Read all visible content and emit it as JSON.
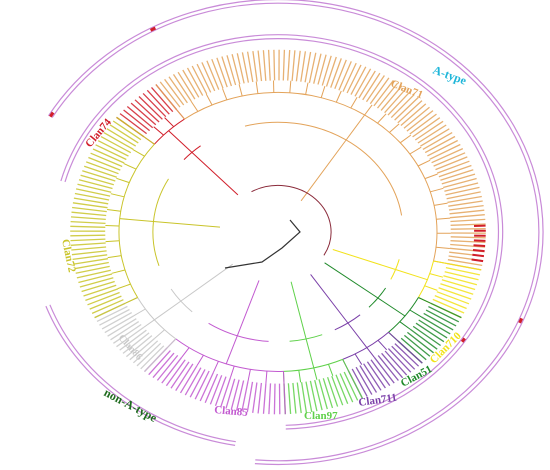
{
  "groups": {
    "a_type": {
      "label": "A-type",
      "color": "#1fb6d9"
    },
    "non_a_type": {
      "label": "non-A-type",
      "color": "#1f6b1f"
    }
  },
  "clans": [
    {
      "key": "clan74",
      "label": "Clan74",
      "color": "#d11e2a"
    },
    {
      "key": "clan71",
      "label": "Clan71",
      "color": "#e3a35a"
    },
    {
      "key": "clan72",
      "label": "Clan72",
      "color": "#c9c42a"
    },
    {
      "key": "clan86",
      "label": "Clan86",
      "color": "#c8c8c8"
    },
    {
      "key": "clan85",
      "label": "Clan85",
      "color": "#c25ad0"
    },
    {
      "key": "clan97",
      "label": "Clan97",
      "color": "#5fd14a"
    },
    {
      "key": "clan711",
      "label": "Clan711",
      "color": "#7a3fa8"
    },
    {
      "key": "clan51",
      "label": "Clan51",
      "color": "#1f8a2a"
    },
    {
      "key": "clan710",
      "label": "Clan710",
      "color": "#f2e21a"
    }
  ],
  "ring_color": "#c98bd8",
  "highlight_color": "#d11e2a"
}
